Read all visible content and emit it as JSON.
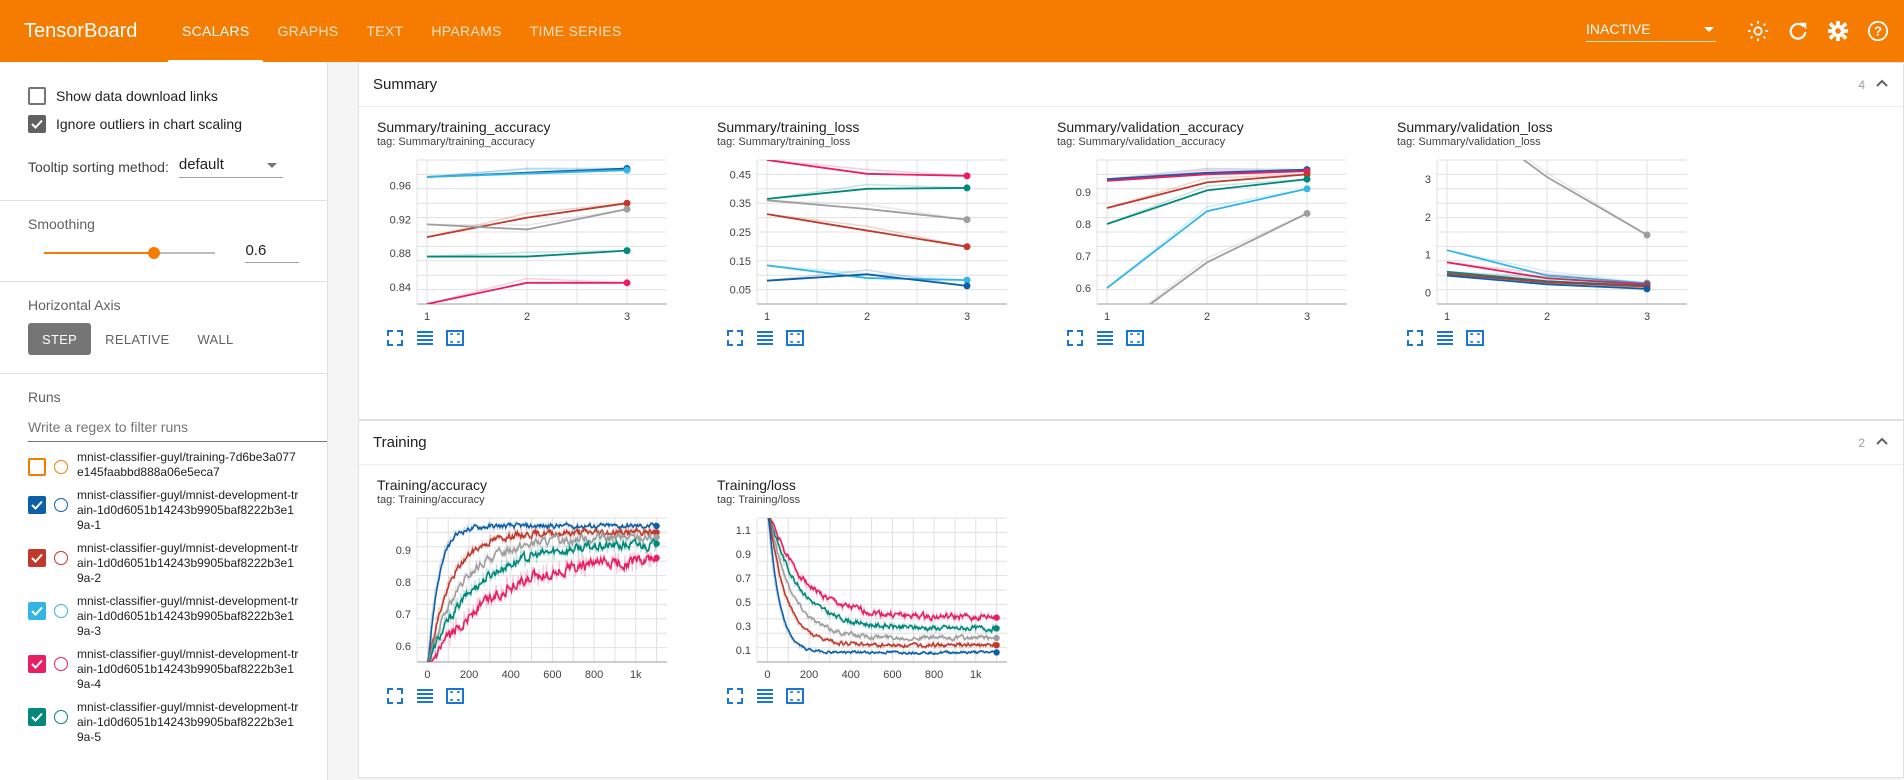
{
  "app": {
    "title": "TensorBoard"
  },
  "tabs": [
    {
      "label": "SCALARS",
      "active": true
    },
    {
      "label": "GRAPHS",
      "active": false
    },
    {
      "label": "TEXT",
      "active": false
    },
    {
      "label": "HPARAMS",
      "active": false
    },
    {
      "label": "TIME SERIES",
      "active": false
    }
  ],
  "topbar": {
    "status_select": "INACTIVE",
    "icons": [
      "brightness-icon",
      "refresh-icon",
      "settings-icon",
      "help-icon"
    ],
    "accent": "#f57c00"
  },
  "sidebar": {
    "show_download_links": {
      "label": "Show data download links",
      "checked": false
    },
    "ignore_outliers": {
      "label": "Ignore outliers in chart scaling",
      "checked": true
    },
    "tooltip_sorting": {
      "label": "Tooltip sorting method:",
      "value": "default"
    },
    "smoothing": {
      "label": "Smoothing",
      "value": "0.6",
      "fraction": 0.6
    },
    "horizontal_axis": {
      "label": "Horizontal Axis",
      "options": [
        "STEP",
        "RELATIVE",
        "WALL"
      ],
      "selected": "STEP"
    },
    "runs": {
      "label": "Runs",
      "filter_placeholder": "Write a regex to filter runs",
      "items": [
        {
          "name": "mnist-classifier-guyl/training-7d6be3a077e145faabbd888a06e5eca7",
          "checked": false,
          "color": "#f57c00"
        },
        {
          "name": "mnist-classifier-guyl/mnist-development-train-1d0d6051b14243b9905baf8222b3e19a-1",
          "checked": true,
          "color": "#0d5fa8"
        },
        {
          "name": "mnist-classifier-guyl/mnist-development-train-1d0d6051b14243b9905baf8222b3e19a-2",
          "checked": true,
          "color": "#c0392b"
        },
        {
          "name": "mnist-classifier-guyl/mnist-development-train-1d0d6051b14243b9905baf8222b3e19a-3",
          "checked": true,
          "color": "#33b5e5"
        },
        {
          "name": "mnist-classifier-guyl/mnist-development-train-1d0d6051b14243b9905baf8222b3e19a-4",
          "checked": true,
          "color": "#e91e63"
        },
        {
          "name": "mnist-classifier-guyl/mnist-development-train-1d0d6051b14243b9905baf8222b3e19a-5",
          "checked": true,
          "color": "#00897b"
        }
      ]
    }
  },
  "groups": [
    {
      "name": "Summary",
      "count": "4",
      "cards": [
        {
          "title": "Summary/training_accuracy",
          "tag": "tag: Summary/training_accuracy"
        },
        {
          "title": "Summary/training_loss",
          "tag": "tag: Summary/training_loss"
        },
        {
          "title": "Summary/validation_accuracy",
          "tag": "tag: Summary/validation_accuracy"
        },
        {
          "title": "Summary/validation_loss",
          "tag": "tag: Summary/validation_loss"
        }
      ]
    },
    {
      "name": "Training",
      "count": "2",
      "cards": [
        {
          "title": "Training/accuracy",
          "tag": "tag: Training/accuracy"
        },
        {
          "title": "Training/loss",
          "tag": "tag: Training/loss"
        }
      ]
    }
  ],
  "chart_data": [
    {
      "type": "line",
      "title": "Summary/training_accuracy",
      "x": [
        1,
        2,
        3
      ],
      "xticks": [
        "1",
        "2",
        "3"
      ],
      "yticks": [
        "0.84",
        "0.88",
        "0.92",
        "0.96"
      ],
      "ylim": [
        0.82,
        0.99
      ],
      "series": [
        {
          "color": "#0d5fa8",
          "values": [
            0.97,
            0.975,
            0.98
          ]
        },
        {
          "color": "#33b5e5",
          "values": [
            0.97,
            0.974,
            0.978
          ]
        },
        {
          "color": "#c0392b",
          "values": [
            0.899,
            0.922,
            0.939
          ]
        },
        {
          "color": "#9e9e9e",
          "values": [
            0.914,
            0.908,
            0.932
          ]
        },
        {
          "color": "#00897b",
          "values": [
            0.876,
            0.876,
            0.883
          ]
        },
        {
          "color": "#e91e63",
          "values": [
            0.82,
            0.845,
            0.845
          ]
        }
      ]
    },
    {
      "type": "line",
      "title": "Summary/training_loss",
      "x": [
        1,
        2,
        3
      ],
      "xticks": [
        "1",
        "2",
        "3"
      ],
      "yticks": [
        "0.05",
        "0.15",
        "0.25",
        "0.35",
        "0.45"
      ],
      "ylim": [
        0.0,
        0.5
      ],
      "series": [
        {
          "color": "#e91e63",
          "values": [
            0.5,
            0.452,
            0.445
          ]
        },
        {
          "color": "#00897b",
          "values": [
            0.365,
            0.4,
            0.403
          ]
        },
        {
          "color": "#9e9e9e",
          "values": [
            0.36,
            0.33,
            0.293
          ]
        },
        {
          "color": "#c0392b",
          "values": [
            0.312,
            0.255,
            0.199
          ]
        },
        {
          "color": "#33b5e5",
          "values": [
            0.134,
            0.09,
            0.083
          ]
        },
        {
          "color": "#0d5fa8",
          "values": [
            0.081,
            0.103,
            0.063
          ]
        }
      ]
    },
    {
      "type": "line",
      "title": "Summary/validation_accuracy",
      "x": [
        1,
        2,
        3
      ],
      "xticks": [
        "1",
        "2",
        "3"
      ],
      "yticks": [
        "0.6",
        "0.7",
        "0.8",
        "0.9"
      ],
      "ylim": [
        0.55,
        1.0
      ],
      "series": [
        {
          "color": "#0d5fa8",
          "values": [
            0.94,
            0.96,
            0.97
          ]
        },
        {
          "color": "#e91e63",
          "values": [
            0.935,
            0.955,
            0.965
          ]
        },
        {
          "color": "#c0392b",
          "values": [
            0.85,
            0.93,
            0.955
          ]
        },
        {
          "color": "#00897b",
          "values": [
            0.8,
            0.905,
            0.94
          ]
        },
        {
          "color": "#33b5e5",
          "values": [
            0.6,
            0.84,
            0.91
          ]
        },
        {
          "color": "#9e9e9e",
          "values": [
            0.45,
            0.68,
            0.833
          ]
        }
      ]
    },
    {
      "type": "line",
      "title": "Summary/validation_loss",
      "x": [
        1,
        2,
        3
      ],
      "xticks": [
        "1",
        "2",
        "3"
      ],
      "yticks": [
        "0",
        "1",
        "2",
        "3"
      ],
      "ylim": [
        -0.3,
        3.5
      ],
      "series": [
        {
          "color": "#9e9e9e",
          "values": [
            5.0,
            3.05,
            1.52
          ]
        },
        {
          "color": "#33b5e5",
          "values": [
            1.12,
            0.45,
            0.25
          ]
        },
        {
          "color": "#e91e63",
          "values": [
            0.8,
            0.38,
            0.22
          ]
        },
        {
          "color": "#00897b",
          "values": [
            0.55,
            0.3,
            0.18
          ]
        },
        {
          "color": "#c0392b",
          "values": [
            0.5,
            0.27,
            0.16
          ]
        },
        {
          "color": "#0d5fa8",
          "values": [
            0.45,
            0.22,
            0.1
          ]
        }
      ]
    },
    {
      "type": "line",
      "title": "Training/accuracy",
      "xticks": [
        "0",
        "200",
        "400",
        "600",
        "800",
        "1k"
      ],
      "yticks": [
        "0.6",
        "0.7",
        "0.8",
        "0.9"
      ],
      "xlim": [
        -50,
        1150
      ],
      "ylim": [
        0.55,
        1.0
      ],
      "series": [
        {
          "color": "#0d5fa8",
          "start": 0.55,
          "end": 0.975,
          "rate": 0.02,
          "noise": 0.015
        },
        {
          "color": "#c0392b",
          "start": 0.55,
          "end": 0.955,
          "rate": 0.009,
          "noise": 0.02
        },
        {
          "color": "#9e9e9e",
          "start": 0.55,
          "end": 0.94,
          "rate": 0.006,
          "noise": 0.025
        },
        {
          "color": "#00897b",
          "start": 0.55,
          "end": 0.92,
          "rate": 0.0045,
          "noise": 0.028
        },
        {
          "color": "#e91e63",
          "start": 0.52,
          "end": 0.875,
          "rate": 0.0035,
          "noise": 0.035
        }
      ]
    },
    {
      "type": "line",
      "title": "Training/loss",
      "xticks": [
        "0",
        "200",
        "400",
        "600",
        "800",
        "1k"
      ],
      "yticks": [
        "0.1",
        "0.3",
        "0.5",
        "0.7",
        "0.9",
        "1.1"
      ],
      "xlim": [
        -50,
        1150
      ],
      "ylim": [
        0.0,
        1.2
      ],
      "series": [
        {
          "color": "#e91e63",
          "start": 1.25,
          "end": 0.37,
          "rate": 0.006,
          "noise": 0.05
        },
        {
          "color": "#00897b",
          "start": 1.25,
          "end": 0.28,
          "rate": 0.007,
          "noise": 0.04
        },
        {
          "color": "#9e9e9e",
          "start": 1.25,
          "end": 0.2,
          "rate": 0.009,
          "noise": 0.035
        },
        {
          "color": "#c0392b",
          "start": 1.25,
          "end": 0.14,
          "rate": 0.012,
          "noise": 0.03
        },
        {
          "color": "#0d5fa8",
          "start": 1.25,
          "end": 0.08,
          "rate": 0.02,
          "noise": 0.02
        }
      ]
    }
  ]
}
